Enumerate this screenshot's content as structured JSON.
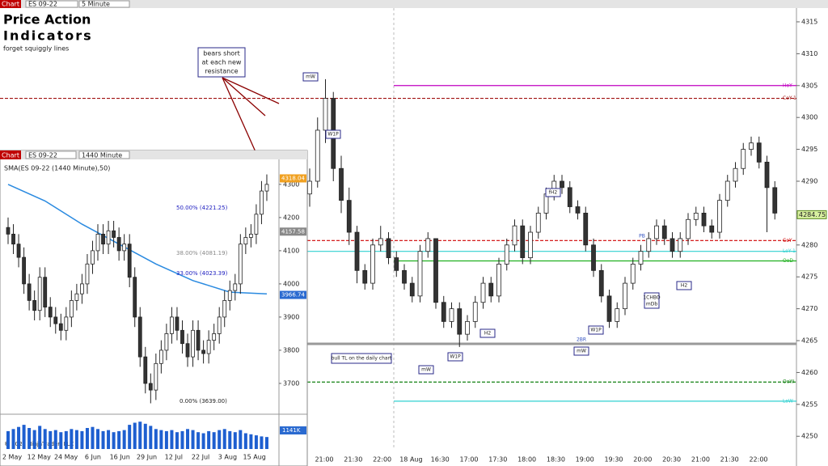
{
  "toolbar": {
    "tab": "Chart",
    "symbol": "ES 09-22",
    "interval": "5 Minute"
  },
  "title": {
    "line1": "Price Action",
    "line2": "Indicators",
    "line3": "forget squiggly lines"
  },
  "callout": [
    "bears short",
    "at each new",
    "resistance"
  ],
  "chart_data": [
    {
      "type": "candlestick",
      "candles": [
        [
          4288,
          4292,
          4286,
          4290
        ],
        [
          4290,
          4300,
          4289,
          4298
        ],
        [
          4298,
          4306,
          4296,
          4303
        ],
        [
          4303,
          4304,
          4290,
          4292
        ],
        [
          4292,
          4294,
          4285,
          4287
        ],
        [
          4287,
          4289,
          4280,
          4282
        ],
        [
          4282,
          4283,
          4274,
          4276
        ],
        [
          4276,
          4277,
          4273,
          4274
        ],
        [
          4274,
          4281,
          4273,
          4280
        ],
        [
          4280,
          4283,
          4279,
          4281
        ],
        [
          4281,
          4282,
          4277,
          4278
        ],
        [
          4278,
          4279,
          4275,
          4276
        ],
        [
          4276,
          4277,
          4273,
          4274
        ],
        [
          4274,
          4275,
          4271,
          4272
        ],
        [
          4272,
          4280,
          4271,
          4279
        ],
        [
          4279,
          4282,
          4278,
          4281
        ],
        [
          4281,
          4281,
          4270,
          4271
        ],
        [
          4271,
          4272,
          4267,
          4268
        ],
        [
          4268,
          4271,
          4267,
          4270
        ],
        [
          4270,
          4271,
          4264,
          4266
        ],
        [
          4266,
          4269,
          4265,
          4268
        ],
        [
          4268,
          4272,
          4267,
          4271
        ],
        [
          4271,
          4275,
          4270,
          4274
        ],
        [
          4274,
          4275,
          4271,
          4272
        ],
        [
          4272,
          4278,
          4271,
          4277
        ],
        [
          4277,
          4281,
          4276,
          4280
        ],
        [
          4280,
          4284,
          4279,
          4283
        ],
        [
          4283,
          4284,
          4277,
          4278
        ],
        [
          4278,
          4283,
          4277,
          4282
        ],
        [
          4282,
          4286,
          4281,
          4285
        ],
        [
          4285,
          4289,
          4284,
          4288
        ],
        [
          4288,
          4291,
          4287,
          4290
        ],
        [
          4290,
          4291,
          4288,
          4289
        ],
        [
          4289,
          4290,
          4285,
          4286
        ],
        [
          4286,
          4287,
          4284,
          4285
        ],
        [
          4285,
          4286,
          4279,
          4280
        ],
        [
          4280,
          4281,
          4275,
          4276
        ],
        [
          4276,
          4277,
          4271,
          4272
        ],
        [
          4272,
          4273,
          4267,
          4268
        ],
        [
          4268,
          4271,
          4267,
          4270
        ],
        [
          4270,
          4275,
          4269,
          4274
        ],
        [
          4274,
          4278,
          4273,
          4277
        ],
        [
          4277,
          4280,
          4276,
          4279
        ],
        [
          4279,
          4282,
          4278,
          4281
        ],
        [
          4281,
          4284,
          4280,
          4283
        ],
        [
          4283,
          4284,
          4280,
          4281
        ],
        [
          4281,
          4282,
          4278,
          4279
        ],
        [
          4279,
          4282,
          4278,
          4281
        ],
        [
          4281,
          4285,
          4280,
          4284
        ],
        [
          4284,
          4286,
          4283,
          4285
        ],
        [
          4285,
          4286,
          4282,
          4283
        ],
        [
          4283,
          4284,
          4281,
          4282
        ],
        [
          4282,
          4288,
          4281,
          4287
        ],
        [
          4287,
          4291,
          4286,
          4290
        ],
        [
          4290,
          4293,
          4289,
          4292
        ],
        [
          4292,
          4296,
          4291,
          4295
        ],
        [
          4295,
          4297,
          4294,
          4296
        ],
        [
          4296,
          4297,
          4292,
          4293
        ],
        [
          4293,
          4294,
          4282,
          4289
        ],
        [
          4289,
          4290,
          4284,
          4285
        ]
      ],
      "ylim": [
        4248,
        4316.9
      ],
      "yticks": [
        4250,
        4255,
        4260,
        4265,
        4270,
        4275,
        4280,
        4285,
        4290,
        4295,
        4300,
        4305,
        4310,
        4315
      ],
      "xticks": [
        "21:00",
        "21:30",
        "22:00",
        "18 Aug",
        "16:30",
        "17:00",
        "17:30",
        "18:00",
        "18:30",
        "19:00",
        "19:30",
        "20:00",
        "20:30",
        "21:00",
        "21:30",
        "22:00"
      ],
      "levels": [
        {
          "name": "HoY",
          "value": 4305,
          "color": "#c000c0"
        },
        {
          "name": "CoY-1",
          "value": 4303,
          "color": "#a01010"
        },
        {
          "name": "CoY",
          "value": 4280.7,
          "color": "#d00000"
        },
        {
          "name": "LoY-1",
          "value": 4279,
          "color": "#30d0d0"
        },
        {
          "name": "OoD",
          "value": 4277.5,
          "color": "#20b020"
        },
        {
          "name": "OoW",
          "value": 4258.5,
          "color": "#108010"
        },
        {
          "name": "LoW",
          "value": 4255.5,
          "color": "#30d0d0"
        }
      ],
      "trendline": {
        "label": "bull TL on the daily chart",
        "value": 4264.5
      },
      "annotations": [
        "mW",
        "W1P",
        "fH2",
        "PB",
        "H2",
        "1CHBO",
        "mDb",
        "2BR",
        "mW",
        "W1P",
        "H2",
        "W1P",
        "mW"
      ],
      "last_price": 4284.75
    },
    {
      "type": "candlestick",
      "toolbar": {
        "tab": "Chart",
        "symbol": "ES 09-22",
        "interval": "1440 Minute"
      },
      "title": "SMA(ES 09-22 (1440 Minute),50)",
      "candles": [
        [
          4170,
          4200,
          4120,
          4150
        ],
        [
          4150,
          4180,
          4090,
          4120
        ],
        [
          4120,
          4150,
          4050,
          4080
        ],
        [
          4080,
          4110,
          3970,
          4000
        ],
        [
          4000,
          4030,
          3920,
          3950
        ],
        [
          3950,
          3980,
          3890,
          3920
        ],
        [
          3920,
          4050,
          3890,
          4020
        ],
        [
          4020,
          4050,
          3900,
          3930
        ],
        [
          3930,
          3960,
          3870,
          3900
        ],
        [
          3900,
          3930,
          3850,
          3880
        ],
        [
          3880,
          3910,
          3830,
          3860
        ],
        [
          3860,
          3930,
          3830,
          3900
        ],
        [
          3900,
          3980,
          3870,
          3950
        ],
        [
          3950,
          4000,
          3920,
          3970
        ],
        [
          3970,
          4030,
          3940,
          4000
        ],
        [
          4000,
          4090,
          3970,
          4060
        ],
        [
          4060,
          4130,
          4030,
          4100
        ],
        [
          4100,
          4180,
          4070,
          4150
        ],
        [
          4150,
          4180,
          4090,
          4120
        ],
        [
          4120,
          4190,
          4090,
          4160
        ],
        [
          4160,
          4190,
          4110,
          4140
        ],
        [
          4140,
          4170,
          4070,
          4100
        ],
        [
          4100,
          4150,
          4070,
          4120
        ],
        [
          4120,
          4150,
          3990,
          4020
        ],
        [
          4020,
          4050,
          3870,
          3900
        ],
        [
          3900,
          3930,
          3750,
          3780
        ],
        [
          3780,
          3810,
          3670,
          3700
        ],
        [
          3700,
          3730,
          3640,
          3680
        ],
        [
          3680,
          3790,
          3650,
          3760
        ],
        [
          3760,
          3830,
          3730,
          3800
        ],
        [
          3800,
          3880,
          3770,
          3850
        ],
        [
          3850,
          3930,
          3820,
          3900
        ],
        [
          3900,
          3930,
          3830,
          3860
        ],
        [
          3860,
          3890,
          3790,
          3820
        ],
        [
          3820,
          3850,
          3750,
          3780
        ],
        [
          3780,
          3890,
          3750,
          3860
        ],
        [
          3860,
          3890,
          3770,
          3800
        ],
        [
          3800,
          3830,
          3760,
          3790
        ],
        [
          3790,
          3860,
          3760,
          3830
        ],
        [
          3830,
          3880,
          3800,
          3850
        ],
        [
          3850,
          3930,
          3820,
          3900
        ],
        [
          3900,
          3980,
          3870,
          3950
        ],
        [
          3950,
          4010,
          3920,
          3980
        ],
        [
          3980,
          4030,
          3950,
          4000
        ],
        [
          4000,
          4150,
          3970,
          4120
        ],
        [
          4120,
          4170,
          4090,
          4140
        ],
        [
          4140,
          4180,
          4110,
          4150
        ],
        [
          4150,
          4240,
          4120,
          4210
        ],
        [
          4210,
          4310,
          4180,
          4280
        ],
        [
          4280,
          4330,
          4250,
          4300
        ]
      ],
      "ylim": [
        3612,
        4368
      ],
      "yticks": [
        3700,
        3800,
        3900,
        4000,
        4100,
        4200,
        4300
      ],
      "xticks": [
        "2 May",
        "12 May",
        "24 May",
        "6 Jun",
        "16 Jun",
        "29 Jun",
        "12 Jul",
        "22 Jul",
        "3 Aug",
        "15 Aug"
      ],
      "sma": {
        "x": [
          0,
          7,
          14,
          21,
          28,
          35,
          42,
          49
        ],
        "values": [
          4300,
          4250,
          4180,
          4120,
          4060,
          4010,
          3975,
          3970
        ]
      },
      "price_tags": [
        4318.04,
        4157.58,
        3966.74
      ],
      "fib": [
        "50.00% (4221.25)",
        "38.00% (4081.19)",
        "33.00% (4023.39)",
        "0.00% (3639.00)"
      ],
      "volume": {
        "values": [
          1700,
          1900,
          2100,
          2300,
          2000,
          1800,
          2200,
          1900,
          1700,
          1800,
          1600,
          1700,
          1900,
          1800,
          1700,
          2000,
          2100,
          1900,
          1700,
          1800,
          1600,
          1700,
          1800,
          2300,
          2500,
          2600,
          2400,
          2200,
          1900,
          1800,
          1700,
          1800,
          1600,
          1700,
          1900,
          1800,
          1600,
          1500,
          1700,
          1600,
          1800,
          1900,
          1700,
          1600,
          1800,
          1500,
          1400,
          1300,
          1200,
          1141
        ],
        "ylim": [
          0,
          3000
        ],
        "last_label": "1141K"
      },
      "copyright": "© 2022 NinjaTrader, LLC"
    }
  ]
}
